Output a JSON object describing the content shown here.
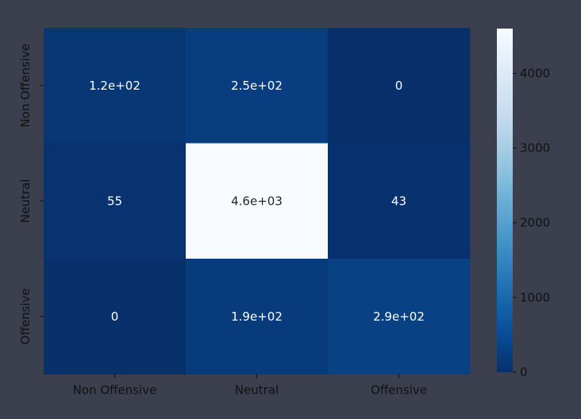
{
  "chart_data": {
    "type": "heatmap",
    "title": "",
    "xlabel": "",
    "ylabel": "",
    "x_categories": [
      "Non Offensive",
      "Neutral",
      "Offensive"
    ],
    "y_categories": [
      "Non Offensive",
      "Neutral",
      "Offensive"
    ],
    "values": [
      [
        120,
        250,
        0
      ],
      [
        55,
        4600,
        43
      ],
      [
        0,
        190,
        290
      ]
    ],
    "annotations": [
      [
        "1.2e+02",
        "2.5e+02",
        "0"
      ],
      [
        "55",
        "4.6e+03",
        "43"
      ],
      [
        "0",
        "1.9e+02",
        "2.9e+02"
      ]
    ],
    "colorbar": {
      "min": 0,
      "max": 4600,
      "ticks": [
        0,
        1000,
        2000,
        3000,
        4000
      ],
      "colormap": "Blues"
    }
  },
  "colors": {
    "background": "#3c404e",
    "annotation_light": "#ffffff",
    "annotation_dark": "#262626"
  }
}
